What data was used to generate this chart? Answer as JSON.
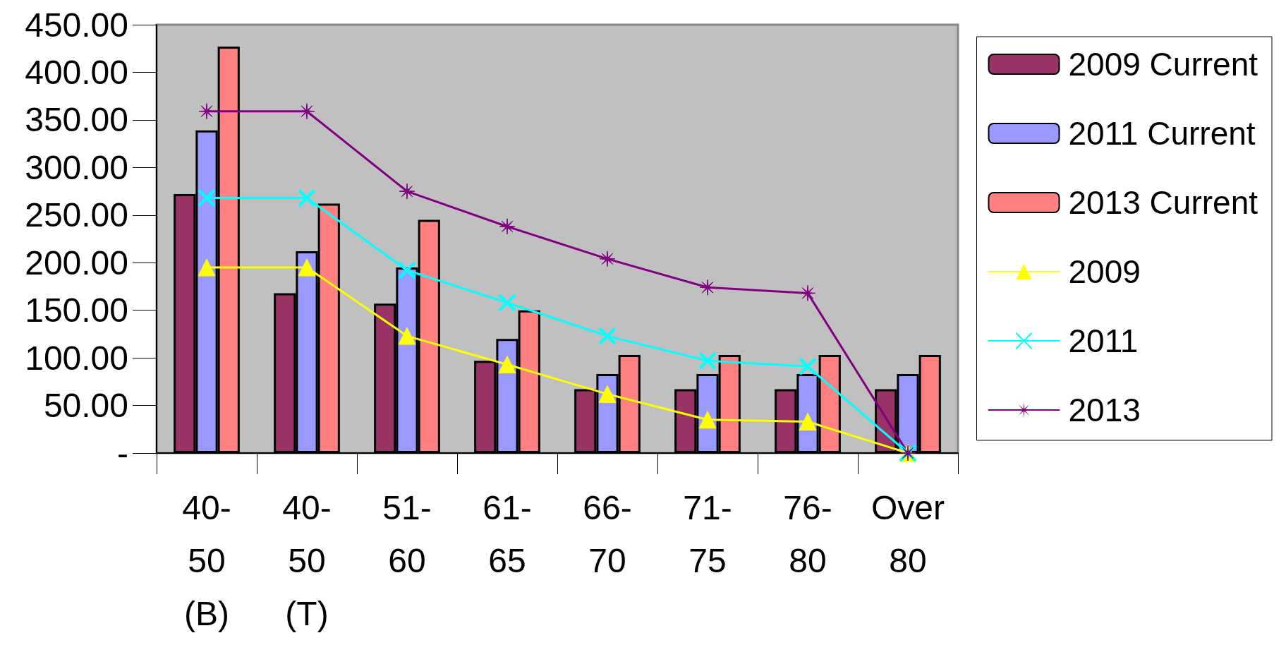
{
  "chart_data": {
    "type": "bar",
    "categories": [
      "40-50 (B)",
      "40-50 (T)",
      "51-60",
      "61-65",
      "66-70",
      "71-75",
      "76-80",
      "Over 80"
    ],
    "series": [
      {
        "name": "2009 Current",
        "color": "#993366",
        "values": [
          272,
          168,
          157,
          97,
          67,
          67,
          67,
          67
        ]
      },
      {
        "name": "2011 Current",
        "color": "#9999ff",
        "values": [
          339,
          212,
          195,
          120,
          83,
          83,
          83,
          83
        ]
      },
      {
        "name": "2013 Current",
        "color": "#ff8080",
        "values": [
          427,
          262,
          245,
          150,
          103,
          103,
          103,
          103
        ]
      },
      {
        "name": "2009",
        "type": "line",
        "marker": "triangle",
        "color": "#ffff00",
        "values": [
          195,
          195,
          123,
          93,
          62,
          35,
          33,
          0
        ]
      },
      {
        "name": "2011",
        "type": "line",
        "marker": "cross",
        "color": "#00ffff",
        "values": [
          268,
          268,
          192,
          158,
          123,
          97,
          91,
          0
        ]
      },
      {
        "name": "2013",
        "type": "line",
        "marker": "star",
        "color": "#800080",
        "values": [
          359,
          359,
          275,
          238,
          204,
          174,
          168,
          0
        ]
      }
    ],
    "ylim": [
      0,
      450
    ],
    "yticks": [
      {
        "value": 0,
        "label": "-"
      },
      {
        "value": 50,
        "label": "50.00"
      },
      {
        "value": 100,
        "label": "100.00"
      },
      {
        "value": 150,
        "label": "150.00"
      },
      {
        "value": 200,
        "label": "200.00"
      },
      {
        "value": 250,
        "label": "250.00"
      },
      {
        "value": 300,
        "label": "300.00"
      },
      {
        "value": 350,
        "label": "350.00"
      },
      {
        "value": 400,
        "label": "400.00"
      },
      {
        "value": 450,
        "label": "450.00"
      }
    ],
    "grid": false,
    "legend": "right"
  }
}
